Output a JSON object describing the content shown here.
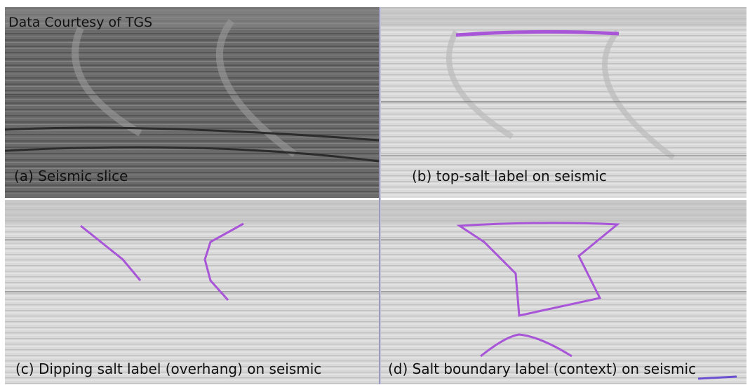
{
  "credit": "Data Courtesy of TGS",
  "panels": [
    {
      "caption": "(a) Seismic slice"
    },
    {
      "caption": "(b) top-salt label on seismic"
    },
    {
      "caption": "(c) Dipping salt label (overhang) on seismic"
    },
    {
      "caption": "(d) Salt boundary label (context) on seismic"
    }
  ]
}
